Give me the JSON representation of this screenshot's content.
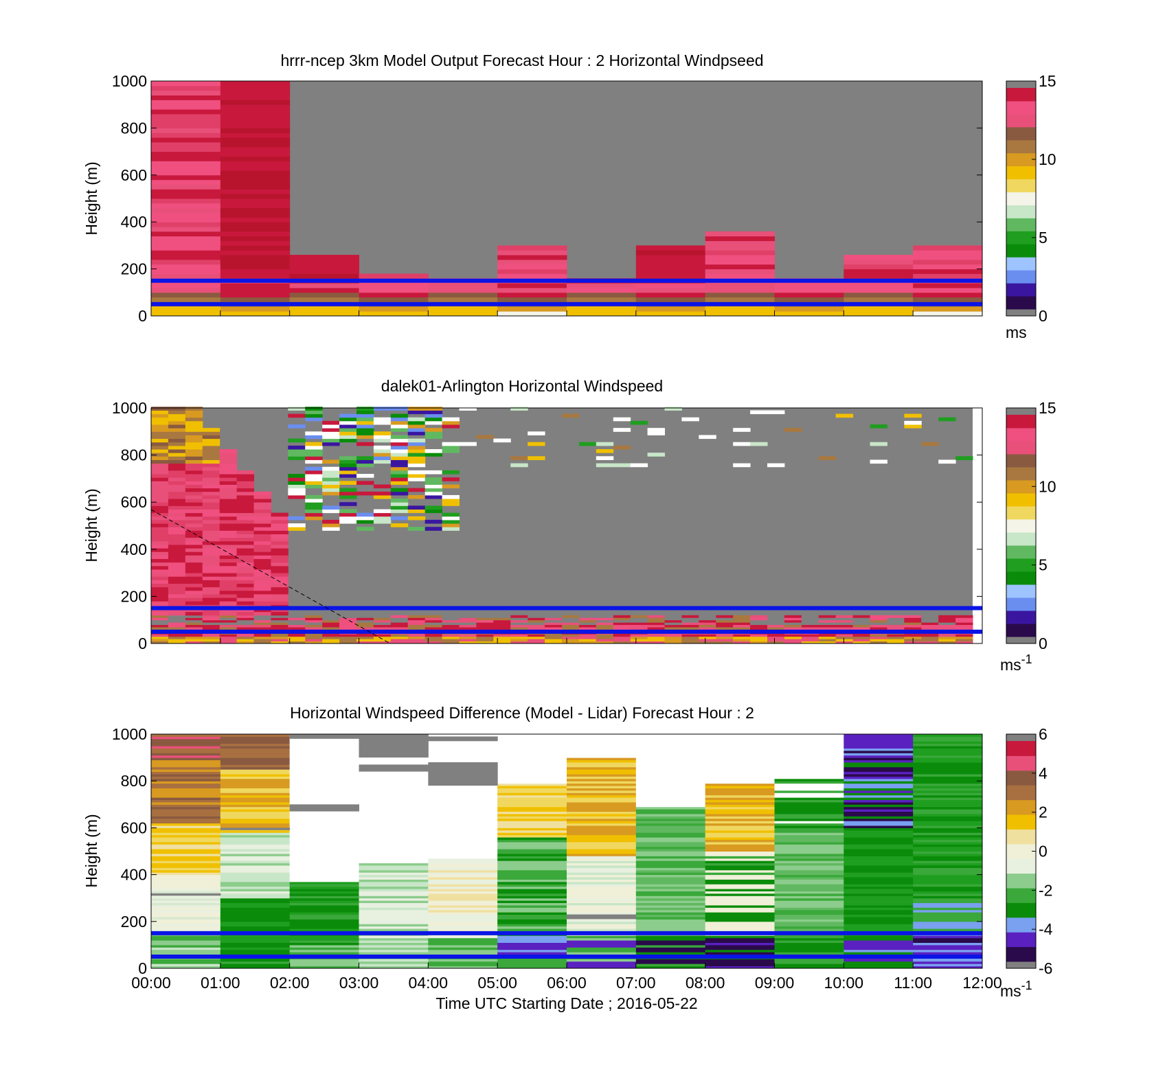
{
  "colors": {
    "missing": "#808080",
    "overlay_line": "#0a14e6",
    "speed_scale": [
      "#2a0a4a",
      "#3a16a0",
      "#6a8ef0",
      "#9ec4ff",
      "#0a8c0a",
      "#1f9e1f",
      "#60b860",
      "#c8e6c8",
      "#f4f4e8",
      "#f0d860",
      "#f0c000",
      "#d89a20",
      "#a87840",
      "#8a5a40",
      "#e8507a",
      "#f05080",
      "#c8183c"
    ],
    "diff_scale": [
      "#2a0a4a",
      "#5a20c0",
      "#7aa0f0",
      "#0a8c0a",
      "#3aa83a",
      "#8ccc8c",
      "#e8f0e0",
      "#f0f0d8",
      "#f0e0a0",
      "#f0c000",
      "#d89a20",
      "#a87040",
      "#8a5a40",
      "#e8507a",
      "#c8183c"
    ]
  },
  "chart_data": [
    {
      "type": "heatmap",
      "title": "hrrr-ncep 3km Model Output   Forecast Hour : 2 Horizontal Windpseed",
      "ylabel": "Height (m)",
      "xlabel": "",
      "ylim": [
        0,
        1000
      ],
      "yticks": [
        "0",
        "200",
        "400",
        "600",
        "800",
        "1000"
      ],
      "x": [
        "00:00",
        "01:00",
        "02:00",
        "03:00",
        "04:00",
        "05:00",
        "06:00",
        "07:00",
        "08:00",
        "09:00",
        "10:00",
        "11:00",
        "12:00"
      ],
      "xtick_labels_shown": false,
      "colorbar": {
        "ticks": [
          "0",
          "5",
          "10",
          "15"
        ],
        "range": [
          0,
          15
        ],
        "unit": "ms"
      },
      "column_tops_m": [
        1000,
        1000,
        250,
        180,
        160,
        300,
        160,
        300,
        350,
        160,
        250,
        300
      ],
      "overlay_heights_m": [
        50,
        150
      ]
    },
    {
      "type": "heatmap",
      "title": "dalek01-Arlington  Horizontal Windspeed",
      "ylabel": "Height (m)",
      "xlabel": "",
      "ylim": [
        0,
        1000
      ],
      "yticks": [
        "0",
        "200",
        "400",
        "600",
        "800",
        "1000"
      ],
      "xtick_labels_shown": false,
      "colorbar": {
        "ticks": [
          "0",
          "5",
          "10",
          "15"
        ],
        "range": [
          0,
          15
        ],
        "unit": "ms",
        "unit_exponent": "-1"
      },
      "overlay_heights_m": [
        50,
        150
      ]
    },
    {
      "type": "heatmap",
      "title": "Horizontal Windspeed Difference (Model - Lidar) Forecast Hour : 2",
      "ylabel": "Height (m)",
      "xlabel": "Time UTC  Starting Date ; 2016-05-22",
      "ylim": [
        0,
        1000
      ],
      "yticks": [
        "0",
        "200",
        "400",
        "600",
        "800",
        "1000"
      ],
      "x": [
        "00:00",
        "01:00",
        "02:00",
        "03:00",
        "04:00",
        "05:00",
        "06:00",
        "07:00",
        "08:00",
        "09:00",
        "10:00",
        "11:00",
        "12:00"
      ],
      "colorbar": {
        "ticks": [
          "-6",
          "-4",
          "-2",
          "0",
          "2",
          "4",
          "6"
        ],
        "range": [
          -6,
          6
        ],
        "unit": "ms",
        "unit_exponent": "-1"
      },
      "overlay_heights_m": [
        50,
        150
      ]
    }
  ]
}
